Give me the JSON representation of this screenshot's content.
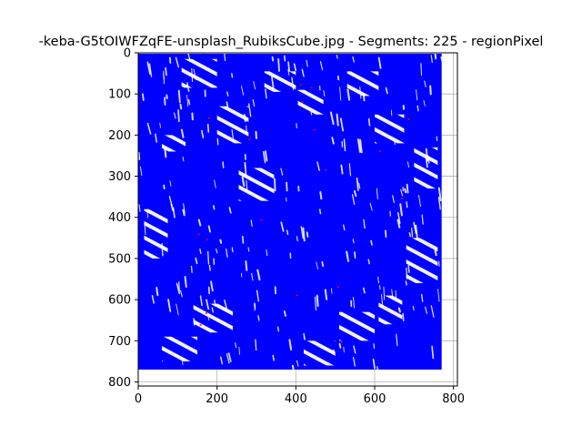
{
  "chart_data": {
    "type": "image",
    "title": "-keba-G5tOIWFZqFE-unsplash_RubiksCube.jpg - Segments: 225 - regionPixel",
    "xlim": [
      0,
      810
    ],
    "ylim": [
      810,
      0
    ],
    "x_ticks": [
      "0",
      "200",
      "400",
      "600",
      "800"
    ],
    "x_tick_values": [
      0,
      200,
      400,
      600,
      800
    ],
    "y_ticks": [
      "0",
      "100",
      "200",
      "300",
      "400",
      "500",
      "600",
      "700",
      "800"
    ],
    "y_tick_values": [
      0,
      100,
      200,
      300,
      400,
      500,
      600,
      700,
      800
    ],
    "grid": true,
    "image_extent": [
      0,
      770,
      0,
      770
    ],
    "segments": 225,
    "colors": {
      "segment_edges": "#0000ff",
      "highlight": "#ff0000",
      "background": "#ffffff",
      "grid": "#b0b0b0"
    },
    "light_patches": [
      {
        "x": 110,
        "y": 15,
        "w": 90,
        "h": 70
      },
      {
        "x": 320,
        "y": 45,
        "w": 80,
        "h": 50
      },
      {
        "x": 405,
        "y": 90,
        "w": 65,
        "h": 60
      },
      {
        "x": 530,
        "y": 45,
        "w": 80,
        "h": 60
      },
      {
        "x": 200,
        "y": 130,
        "w": 80,
        "h": 90
      },
      {
        "x": 600,
        "y": 150,
        "w": 75,
        "h": 70
      },
      {
        "x": 60,
        "y": 200,
        "w": 60,
        "h": 40
      },
      {
        "x": 700,
        "y": 230,
        "w": 60,
        "h": 100
      },
      {
        "x": 255,
        "y": 280,
        "w": 90,
        "h": 80
      },
      {
        "x": 15,
        "y": 380,
        "w": 60,
        "h": 120
      },
      {
        "x": 680,
        "y": 450,
        "w": 80,
        "h": 110
      },
      {
        "x": 140,
        "y": 610,
        "w": 100,
        "h": 70
      },
      {
        "x": 60,
        "y": 690,
        "w": 90,
        "h": 60
      },
      {
        "x": 510,
        "y": 630,
        "w": 90,
        "h": 70
      },
      {
        "x": 420,
        "y": 700,
        "w": 80,
        "h": 60
      },
      {
        "x": 610,
        "y": 590,
        "w": 60,
        "h": 70
      }
    ]
  }
}
